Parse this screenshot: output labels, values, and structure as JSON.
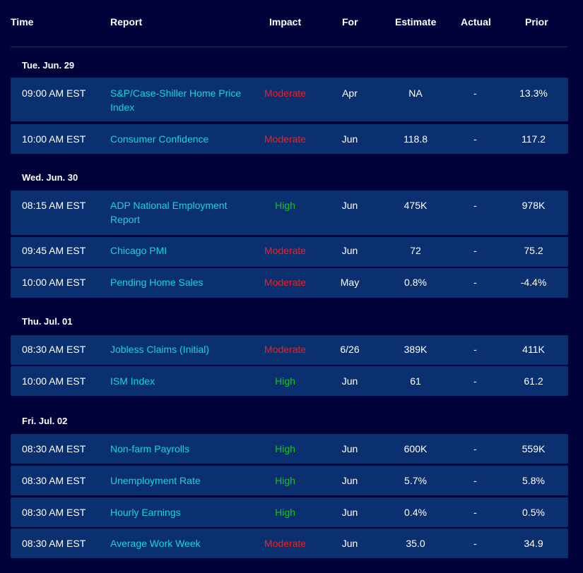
{
  "columns": {
    "time": "Time",
    "report": "Report",
    "impact": "Impact",
    "for": "For",
    "estimate": "Estimate",
    "actual": "Actual",
    "prior": "Prior"
  },
  "colors": {
    "background": "#01023a",
    "row_background": "#0b3070",
    "report_text": "#17d6d6",
    "impact_moderate": "#ff1a1a",
    "impact_high": "#19c419"
  },
  "days": [
    {
      "label": "Tue. Jun. 29",
      "rows": [
        {
          "time": "09:00 AM EST",
          "report": "S&P/Case-Shiller Home Price Index",
          "impact": "Moderate",
          "for": "Apr",
          "estimate": "NA",
          "actual": "-",
          "prior": "13.3%"
        },
        {
          "time": "10:00 AM EST",
          "report": "Consumer Confidence",
          "impact": "Moderate",
          "for": "Jun",
          "estimate": "118.8",
          "actual": "-",
          "prior": "117.2"
        }
      ]
    },
    {
      "label": "Wed. Jun. 30",
      "rows": [
        {
          "time": "08:15 AM EST",
          "report": "ADP National Employment Report",
          "impact": "High",
          "for": "Jun",
          "estimate": "475K",
          "actual": "-",
          "prior": "978K"
        },
        {
          "time": "09:45 AM EST",
          "report": "Chicago PMI",
          "impact": "Moderate",
          "for": "Jun",
          "estimate": "72",
          "actual": "-",
          "prior": "75.2"
        },
        {
          "time": "10:00 AM EST",
          "report": "Pending Home Sales",
          "impact": "Moderate",
          "for": "May",
          "estimate": "0.8%",
          "actual": "-",
          "prior": "-4.4%"
        }
      ]
    },
    {
      "label": "Thu. Jul. 01",
      "rows": [
        {
          "time": "08:30 AM EST",
          "report": "Jobless Claims (Initial)",
          "impact": "Moderate",
          "for": "6/26",
          "estimate": "389K",
          "actual": "-",
          "prior": "411K"
        },
        {
          "time": "10:00 AM EST",
          "report": "ISM Index",
          "impact": "High",
          "for": "Jun",
          "estimate": "61",
          "actual": "-",
          "prior": "61.2"
        }
      ]
    },
    {
      "label": "Fri. Jul. 02",
      "rows": [
        {
          "time": "08:30 AM EST",
          "report": "Non-farm Payrolls",
          "impact": "High",
          "for": "Jun",
          "estimate": "600K",
          "actual": "-",
          "prior": "559K"
        },
        {
          "time": "08:30 AM EST",
          "report": "Unemployment Rate",
          "impact": "High",
          "for": "Jun",
          "estimate": "5.7%",
          "actual": "-",
          "prior": "5.8%"
        },
        {
          "time": "08:30 AM EST",
          "report": "Hourly Earnings",
          "impact": "High",
          "for": "Jun",
          "estimate": "0.4%",
          "actual": "-",
          "prior": "0.5%"
        },
        {
          "time": "08:30 AM EST",
          "report": "Average Work Week",
          "impact": "Moderate",
          "for": "Jun",
          "estimate": "35.0",
          "actual": "-",
          "prior": "34.9"
        }
      ]
    }
  ]
}
